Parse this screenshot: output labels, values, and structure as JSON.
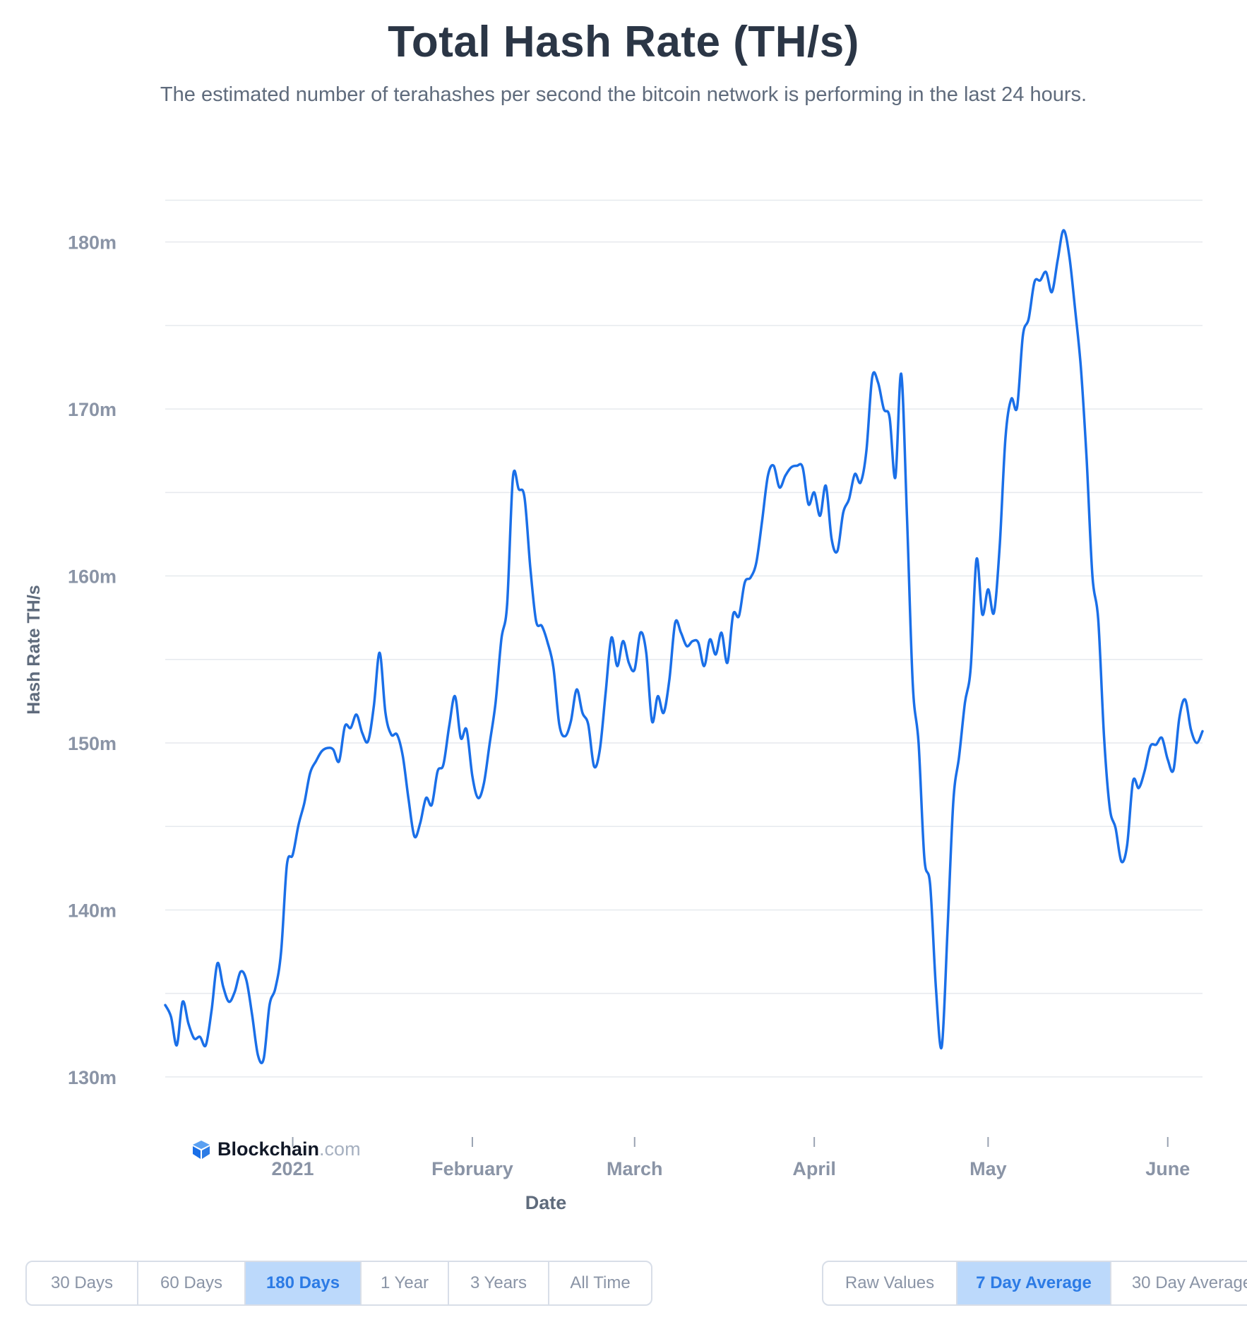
{
  "title": "Total Hash Rate (TH/s)",
  "subtitle": "The estimated number of terahashes per second the bitcoin network is performing in the last 24 hours.",
  "logo": {
    "brand": "Blockchain",
    "suffix": ".com"
  },
  "range_buttons": [
    {
      "label": "30 Days",
      "active": false
    },
    {
      "label": "60 Days",
      "active": false
    },
    {
      "label": "180 Days",
      "active": true
    },
    {
      "label": "1 Year",
      "active": false
    },
    {
      "label": "3 Years",
      "active": false
    },
    {
      "label": "All Time",
      "active": false
    }
  ],
  "average_buttons": [
    {
      "label": "Raw Values",
      "active": false
    },
    {
      "label": "7 Day Average",
      "active": true
    },
    {
      "label": "30 Day Average",
      "active": false
    }
  ],
  "colors": {
    "line": "#1a6fe8",
    "grid": "#e6e9ee",
    "axis_text": "#8a94a6",
    "axis_title": "#5f6b7c"
  },
  "chart_data": {
    "type": "line",
    "title": "Total Hash Rate (TH/s)",
    "xlabel": "Date",
    "ylabel": "Hash Rate TH/s",
    "ylim": [
      127.5,
      183.75
    ],
    "xlim": [
      "2020-12-10",
      "2021-06-07"
    ],
    "y_ticks": [
      {
        "value": 130,
        "label": "130m"
      },
      {
        "value": 140,
        "label": "140m"
      },
      {
        "value": 150,
        "label": "150m"
      },
      {
        "value": 160,
        "label": "160m"
      },
      {
        "value": 170,
        "label": "170m"
      },
      {
        "value": 180,
        "label": "180m"
      }
    ],
    "y_minor_ticks": [
      135,
      145,
      155,
      165,
      175,
      182.5
    ],
    "x_ticks": [
      {
        "date": "2021-01-01",
        "label": "2021"
      },
      {
        "date": "2021-02-01",
        "label": "February"
      },
      {
        "date": "2021-03-01",
        "label": "March"
      },
      {
        "date": "2021-04-01",
        "label": "April"
      },
      {
        "date": "2021-05-01",
        "label": "May"
      },
      {
        "date": "2021-06-01",
        "label": "June"
      }
    ],
    "grid": true,
    "series": [
      {
        "points": [
          [
            "2020-12-10",
            134.3
          ],
          [
            "2020-12-11",
            133.6
          ],
          [
            "2020-12-12",
            131.9
          ],
          [
            "2020-12-13",
            134.5
          ],
          [
            "2020-12-14",
            133.2
          ],
          [
            "2020-12-15",
            132.3
          ],
          [
            "2020-12-16",
            132.4
          ],
          [
            "2020-12-17",
            131.9
          ],
          [
            "2020-12-18",
            134.0
          ],
          [
            "2020-12-19",
            136.8
          ],
          [
            "2020-12-20",
            135.4
          ],
          [
            "2020-12-21",
            134.5
          ],
          [
            "2020-12-22",
            135.1
          ],
          [
            "2020-12-23",
            136.3
          ],
          [
            "2020-12-24",
            135.8
          ],
          [
            "2020-12-25",
            133.7
          ],
          [
            "2020-12-26",
            131.3
          ],
          [
            "2020-12-27",
            131.1
          ],
          [
            "2020-12-28",
            134.3
          ],
          [
            "2020-12-29",
            135.3
          ],
          [
            "2020-12-30",
            137.5
          ],
          [
            "2020-12-31",
            142.7
          ],
          [
            "2021-01-01",
            143.3
          ],
          [
            "2021-01-02",
            145.1
          ],
          [
            "2021-01-03",
            146.4
          ],
          [
            "2021-01-04",
            148.2
          ],
          [
            "2021-01-05",
            148.9
          ],
          [
            "2021-01-06",
            149.5
          ],
          [
            "2021-01-07",
            149.7
          ],
          [
            "2021-01-08",
            149.6
          ],
          [
            "2021-01-09",
            148.9
          ],
          [
            "2021-01-10",
            151.0
          ],
          [
            "2021-01-11",
            150.9
          ],
          [
            "2021-01-12",
            151.7
          ],
          [
            "2021-01-13",
            150.6
          ],
          [
            "2021-01-14",
            150.1
          ],
          [
            "2021-01-15",
            152.2
          ],
          [
            "2021-01-16",
            155.4
          ],
          [
            "2021-01-17",
            151.8
          ],
          [
            "2021-01-18",
            150.5
          ],
          [
            "2021-01-19",
            150.5
          ],
          [
            "2021-01-20",
            149.2
          ],
          [
            "2021-01-21",
            146.6
          ],
          [
            "2021-01-22",
            144.4
          ],
          [
            "2021-01-23",
            145.2
          ],
          [
            "2021-01-24",
            146.7
          ],
          [
            "2021-01-25",
            146.3
          ],
          [
            "2021-01-26",
            148.3
          ],
          [
            "2021-01-27",
            148.7
          ],
          [
            "2021-01-28",
            151.0
          ],
          [
            "2021-01-29",
            152.8
          ],
          [
            "2021-01-30",
            150.3
          ],
          [
            "2021-01-31",
            150.8
          ],
          [
            "2021-02-01",
            148.0
          ],
          [
            "2021-02-02",
            146.7
          ],
          [
            "2021-02-03",
            147.6
          ],
          [
            "2021-02-04",
            150.0
          ],
          [
            "2021-02-05",
            152.4
          ],
          [
            "2021-02-06",
            156.2
          ],
          [
            "2021-02-07",
            158.3
          ],
          [
            "2021-02-08",
            165.9
          ],
          [
            "2021-02-09",
            165.2
          ],
          [
            "2021-02-10",
            164.7
          ],
          [
            "2021-02-11",
            160.5
          ],
          [
            "2021-02-12",
            157.3
          ],
          [
            "2021-02-13",
            157.0
          ],
          [
            "2021-02-14",
            156.0
          ],
          [
            "2021-02-15",
            154.5
          ],
          [
            "2021-02-16",
            151.1
          ],
          [
            "2021-02-17",
            150.4
          ],
          [
            "2021-02-18",
            151.3
          ],
          [
            "2021-02-19",
            153.2
          ],
          [
            "2021-02-20",
            151.8
          ],
          [
            "2021-02-21",
            151.1
          ],
          [
            "2021-02-22",
            148.6
          ],
          [
            "2021-02-23",
            149.6
          ],
          [
            "2021-02-24",
            153.0
          ],
          [
            "2021-02-25",
            156.3
          ],
          [
            "2021-02-26",
            154.6
          ],
          [
            "2021-02-27",
            156.1
          ],
          [
            "2021-02-28",
            154.8
          ],
          [
            "2021-03-01",
            154.4
          ],
          [
            "2021-03-02",
            156.6
          ],
          [
            "2021-03-03",
            155.4
          ],
          [
            "2021-03-04",
            151.3
          ],
          [
            "2021-03-05",
            152.8
          ],
          [
            "2021-03-06",
            151.8
          ],
          [
            "2021-03-07",
            153.8
          ],
          [
            "2021-03-08",
            157.2
          ],
          [
            "2021-03-09",
            156.6
          ],
          [
            "2021-03-10",
            155.8
          ],
          [
            "2021-03-11",
            156.1
          ],
          [
            "2021-03-12",
            156.0
          ],
          [
            "2021-03-13",
            154.6
          ],
          [
            "2021-03-14",
            156.2
          ],
          [
            "2021-03-15",
            155.3
          ],
          [
            "2021-03-16",
            156.6
          ],
          [
            "2021-03-17",
            154.8
          ],
          [
            "2021-03-18",
            157.7
          ],
          [
            "2021-03-19",
            157.6
          ],
          [
            "2021-03-20",
            159.6
          ],
          [
            "2021-03-21",
            159.9
          ],
          [
            "2021-03-22",
            160.8
          ],
          [
            "2021-03-23",
            163.3
          ],
          [
            "2021-03-24",
            166.0
          ],
          [
            "2021-03-25",
            166.6
          ],
          [
            "2021-03-26",
            165.3
          ],
          [
            "2021-03-27",
            166.0
          ],
          [
            "2021-03-28",
            166.5
          ],
          [
            "2021-03-29",
            166.6
          ],
          [
            "2021-03-30",
            166.5
          ],
          [
            "2021-03-31",
            164.3
          ],
          [
            "2021-04-01",
            165.0
          ],
          [
            "2021-04-02",
            163.6
          ],
          [
            "2021-04-03",
            165.4
          ],
          [
            "2021-04-04",
            162.2
          ],
          [
            "2021-04-05",
            161.5
          ],
          [
            "2021-04-06",
            163.8
          ],
          [
            "2021-04-07",
            164.6
          ],
          [
            "2021-04-08",
            166.1
          ],
          [
            "2021-04-09",
            165.6
          ],
          [
            "2021-04-10",
            167.5
          ],
          [
            "2021-04-11",
            171.9
          ],
          [
            "2021-04-12",
            171.6
          ],
          [
            "2021-04-13",
            170.0
          ],
          [
            "2021-04-14",
            169.5
          ],
          [
            "2021-04-15",
            165.9
          ],
          [
            "2021-04-16",
            172.1
          ],
          [
            "2021-04-17",
            163.5
          ],
          [
            "2021-04-18",
            153.5
          ],
          [
            "2021-04-19",
            150.0
          ],
          [
            "2021-04-20",
            143.1
          ],
          [
            "2021-04-21",
            141.5
          ],
          [
            "2021-04-22",
            135.3
          ],
          [
            "2021-04-23",
            131.8
          ],
          [
            "2021-04-24",
            138.8
          ],
          [
            "2021-04-25",
            146.5
          ],
          [
            "2021-04-26",
            149.2
          ],
          [
            "2021-04-27",
            152.4
          ],
          [
            "2021-04-28",
            154.5
          ],
          [
            "2021-04-29",
            161.0
          ],
          [
            "2021-04-30",
            157.7
          ],
          [
            "2021-05-01",
            159.2
          ],
          [
            "2021-05-02",
            157.8
          ],
          [
            "2021-05-03",
            161.8
          ],
          [
            "2021-05-04",
            168.3
          ],
          [
            "2021-05-05",
            170.6
          ],
          [
            "2021-05-06",
            170.1
          ],
          [
            "2021-05-07",
            174.4
          ],
          [
            "2021-05-08",
            175.4
          ],
          [
            "2021-05-09",
            177.6
          ],
          [
            "2021-05-10",
            177.7
          ],
          [
            "2021-05-11",
            178.2
          ],
          [
            "2021-05-12",
            177.0
          ],
          [
            "2021-05-13",
            178.9
          ],
          [
            "2021-05-14",
            180.7
          ],
          [
            "2021-05-15",
            179.2
          ],
          [
            "2021-05-16",
            176.0
          ],
          [
            "2021-05-17",
            172.5
          ],
          [
            "2021-05-18",
            167.0
          ],
          [
            "2021-05-19",
            160.0
          ],
          [
            "2021-05-20",
            157.4
          ],
          [
            "2021-05-21",
            150.4
          ],
          [
            "2021-05-22",
            146.1
          ],
          [
            "2021-05-23",
            144.9
          ],
          [
            "2021-05-24",
            142.9
          ],
          [
            "2021-05-25",
            143.9
          ],
          [
            "2021-05-26",
            147.7
          ],
          [
            "2021-05-27",
            147.3
          ],
          [
            "2021-05-28",
            148.3
          ],
          [
            "2021-05-29",
            149.8
          ],
          [
            "2021-05-30",
            149.9
          ],
          [
            "2021-05-31",
            150.3
          ],
          [
            "2021-06-01",
            149.0
          ],
          [
            "2021-06-02",
            148.4
          ],
          [
            "2021-06-03",
            151.5
          ],
          [
            "2021-06-04",
            152.6
          ],
          [
            "2021-06-05",
            150.8
          ],
          [
            "2021-06-06",
            150.0
          ],
          [
            "2021-06-07",
            150.7
          ]
        ]
      }
    ]
  }
}
